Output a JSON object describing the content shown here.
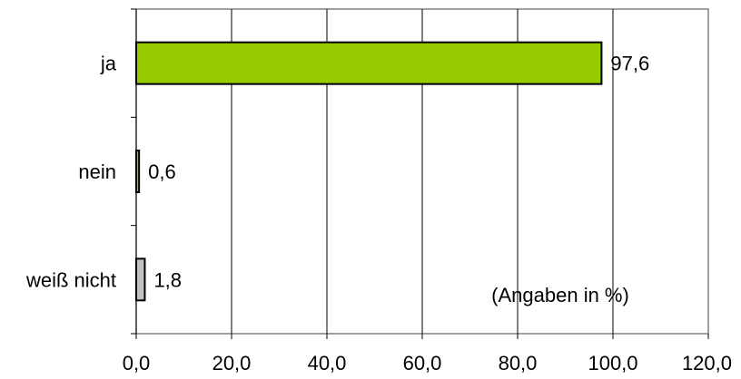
{
  "chart_data": {
    "type": "bar",
    "orientation": "horizontal",
    "categories": [
      "ja",
      "nein",
      "weiß nicht"
    ],
    "values": [
      97.6,
      0.6,
      1.8
    ],
    "value_labels": [
      "97,6",
      "0,6",
      "1,8"
    ],
    "bar_colors": [
      "#99cc00",
      "#99cc00",
      "#c0c0c0"
    ],
    "xlim": [
      0,
      120
    ],
    "x_ticks": [
      0,
      20,
      40,
      60,
      80,
      100,
      120
    ],
    "x_tick_labels": [
      "0,0",
      "20,0",
      "40,0",
      "60,0",
      "80,0",
      "100,0",
      "120,0"
    ],
    "grid": "vertical",
    "annotation": "(Angaben in %)"
  }
}
